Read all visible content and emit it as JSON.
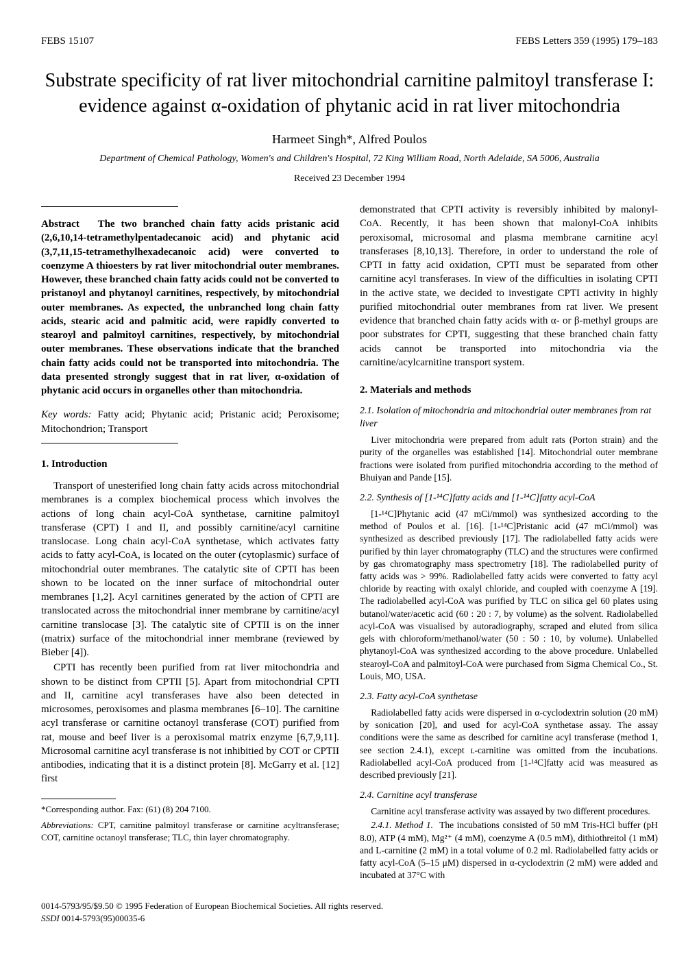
{
  "header": {
    "left": "FEBS 15107",
    "right": "FEBS Letters 359 (1995) 179–183"
  },
  "title": "Substrate specificity of rat liver mitochondrial carnitine palmitoyl transferase I: evidence against α-oxidation of phytanic acid in rat liver mitochondria",
  "authors": "Harmeet Singh*, Alfred Poulos",
  "affiliation": "Department of Chemical Pathology, Women's and Children's Hospital, 72 King William Road, North Adelaide, SA 5006, Australia",
  "received": "Received 23 December 1994",
  "abstract": {
    "label": "Abstract",
    "text": "The two branched chain fatty acids pristanic acid (2,6,10,14-tetramethylpentadecanoic acid) and phytanic acid (3,7,11,15-tetramethylhexadecanoic acid) were converted to coenzyme A thioesters by rat liver mitochondrial outer membranes. However, these branched chain fatty acids could not be converted to pristanoyl and phytanoyl carnitines, respectively, by mitochondrial outer membranes. As expected, the unbranched long chain fatty acids, stearic acid and palmitic acid, were rapidly converted to stearoyl and palmitoyl carnitines, respectively, by mitochondrial outer membranes. These observations indicate that the branched chain fatty acids could not be transported into mitochondria. The data presented strongly suggest that in rat liver, α-oxidation of phytanic acid occurs in organelles other than mitochondria."
  },
  "keywords": {
    "label": "Key words:",
    "text": "Fatty acid; Phytanic acid; Pristanic acid; Peroxisome; Mitochondrion; Transport"
  },
  "intro": {
    "heading": "1. Introduction",
    "p1": "Transport of unesterified long chain fatty acids across mitochondrial membranes is a complex biochemical process which involves the actions of long chain acyl-CoA synthetase, carnitine palmitoyl transferase (CPT) I and II, and possibly carnitine/acyl carnitine translocase. Long chain acyl-CoA synthetase, which activates fatty acids to fatty acyl-CoA, is located on the outer (cytoplasmic) surface of mitochondrial outer membranes. The catalytic site of CPTI has been shown to be located on the inner surface of mitochondrial outer membranes [1,2]. Acyl carnitines generated by the action of CPTI are translocated across the mitochondrial inner membrane by carnitine/acyl carnitine translocase [3]. The catalytic site of CPTII is on the inner (matrix) surface of the mitochondrial inner membrane (reviewed by Bieber [4]).",
    "p2": "CPTI has recently been purified from rat liver mitochondria and shown to be distinct from CPTII [5]. Apart from mitochondrial CPTI and II, carnitine acyl transferases have also been detected in microsomes, peroxisomes and plasma membranes [6–10]. The carnitine acyl transferase or carnitine octanoyl transferase (COT) purified from rat, mouse and beef liver is a peroxisomal matrix enzyme [6,7,9,11]. Microsomal carnitine acyl transferase is not inhibitied by COT or CPTII antibodies, indicating that it is a distinct protein [8]. McGarry et al. [12] first"
  },
  "col2": {
    "p1": "demonstrated that CPTI activity is reversibly inhibited by malonyl-CoA. Recently, it has been shown that malonyl-CoA inhibits peroxisomal, microsomal and plasma membrane carnitine acyl transferases [8,10,13]. Therefore, in order to understand the role of CPTI in fatty acid oxidation, CPTI must be separated from other carnitine acyl transferases. In view of the difficulties in isolating CPTI in the active state, we decided to investigate CPTI activity in highly purified mitochondrial outer membranes from rat liver. We present evidence that branched chain fatty acids with α- or β-methyl groups are poor substrates for CPTI, suggesting that these branched chain fatty acids cannot be transported into mitochondria via the carnitine/acylcarnitine transport system."
  },
  "methods": {
    "heading": "2. Materials and methods",
    "s21": {
      "heading": "2.1. Isolation of mitochondria and mitochondrial outer membranes from rat liver",
      "text": "Liver mitochondria were prepared from adult rats (Porton strain) and the purity of the organelles was established [14]. Mitochondrial outer membrane fractions were isolated from purified mitochondria according to the method of Bhuiyan and Pande [15]."
    },
    "s22": {
      "heading": "2.2. Synthesis of [1-¹⁴C]fatty acids and [1-¹⁴C]fatty acyl-CoA",
      "text": "[1-¹⁴C]Phytanic acid (47 mCi/mmol) was synthesized according to the method of Poulos et al. [16]. [1-¹⁴C]Pristanic acid (47 mCi/mmol) was synthesized as described previously [17]. The radiolabelled fatty acids were purified by thin layer chromatography (TLC) and the structures were confirmed by gas chromatography mass spectrometry [18]. The radiolabelled purity of fatty acids was > 99%. Radiolabelled fatty acids were converted to fatty acyl chloride by reacting with oxalyl chloride, and coupled with coenzyme A [19]. The radiolabelled acyl-CoA was purified by TLC on silica gel 60 plates using butanol/water/acetic acid (60 : 20 : 7, by volume) as the solvent. Radiolabelled acyl-CoA was visualised by autoradiography, scraped and eluted from silica gels with chloroform/methanol/water (50 : 50 : 10, by volume). Unlabelled phytanoyl-CoA was synthesized according to the above procedure. Unlabelled stearoyl-CoA and palmitoyl-CoA were purchased from Sigma Chemical Co., St. Louis, MO, USA."
    },
    "s23": {
      "heading": "2.3. Fatty acyl-CoA synthetase",
      "text": "Radiolabelled fatty acids were dispersed in α-cyclodextrin solution (20 mM) by sonication [20], and used for acyl-CoA synthetase assay. The assay conditions were the same as described for carnitine acyl transferase (method 1, see section 2.4.1), except ʟ-carnitine was omitted from the incubations. Radiolabelled acyl-CoA produced from [1-¹⁴C]fatty acid was measured as described previously [21]."
    },
    "s24": {
      "heading": "2.4. Carnitine acyl transferase",
      "intro": "Carnitine acyl transferase activity was assayed by two different procedures.",
      "m1label": "2.4.1. Method 1.",
      "m1text": "The incubations consisted of 50 mM Tris-HCl buffer (pH 8.0), ATP (4 mM), Mg²⁺ (4 mM), coenzyme A (0.5 mM), dithiothreitol (1 mM) and L-carnitine (2 mM) in a total volume of 0.2 ml. Radiolabelled fatty acids or fatty acyl-CoA (5–15 μM) dispersed in α-cyclodextrin (2 mM) were added and incubated at 37°C with"
    }
  },
  "footnotes": {
    "corresponding": "*Corresponding author. Fax: (61) (8) 204 7100.",
    "abbrev_label": "Abbreviations:",
    "abbrev_text": "CPT, carnitine palmitoyl transferase or carnitine acyltransferase; COT, carnitine octanoyl transferase; TLC, thin layer chromatography."
  },
  "footer": {
    "line1": "0014-5793/95/$9.50 © 1995 Federation of European Biochemical Societies. All rights reserved.",
    "line2": "SSDI 0014-5793(95)00035-6"
  }
}
